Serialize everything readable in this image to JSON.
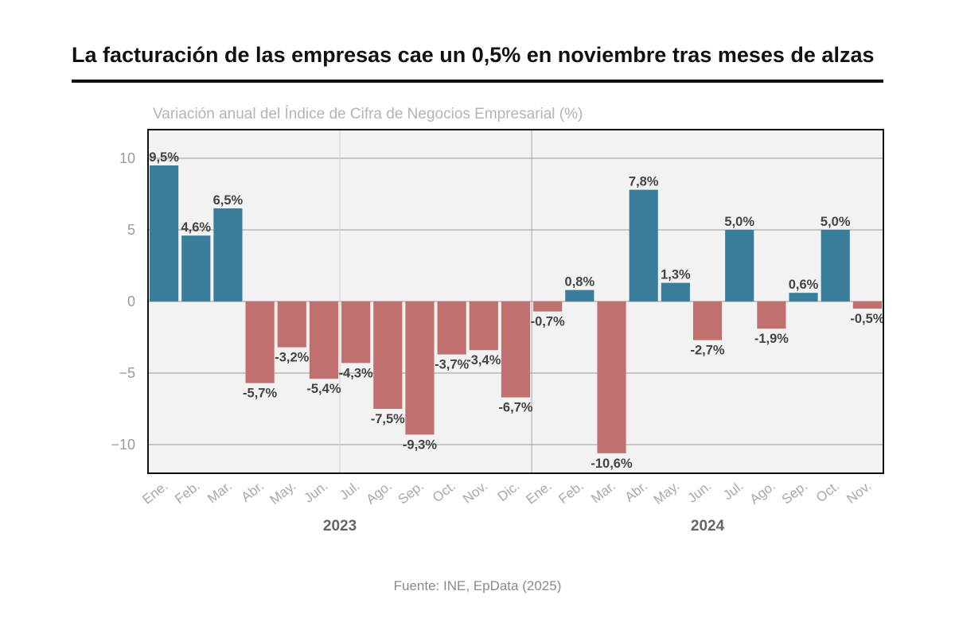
{
  "title": "La facturación de las empresas cae un 0,5% en noviembre tras meses de alzas",
  "source": "Fuente: INE, EpData (2025)",
  "colors": {
    "positive": "#3a7d9b",
    "negative": "#c0706f",
    "plot_bg": "#f2f2f2"
  },
  "chart_data": {
    "type": "bar",
    "title": "Variación anual del Índice de Cifra de Negocios Empresarial (%)",
    "xlabel": "",
    "ylabel": "",
    "ylim": [
      -12,
      12
    ],
    "yticks": [
      10,
      5,
      0,
      -5,
      -10
    ],
    "ytick_labels": [
      "10",
      "5",
      "0",
      "−5",
      "−10"
    ],
    "grid": true,
    "legend": "none",
    "groups": [
      {
        "label": "2023",
        "categories": [
          "Ene.",
          "Feb.",
          "Mar.",
          "Abr.",
          "May.",
          "Jun.",
          "Jul.",
          "Ago.",
          "Sep.",
          "Oct.",
          "Nov.",
          "Dic."
        ]
      },
      {
        "label": "2024",
        "categories": [
          "Ene.",
          "Feb.",
          "Mar.",
          "Abr.",
          "May.",
          "Jun.",
          "Jul.",
          "Ago.",
          "Sep.",
          "Oct.",
          "Nov."
        ]
      }
    ],
    "categories": [
      "Ene.",
      "Feb.",
      "Mar.",
      "Abr.",
      "May.",
      "Jun.",
      "Jul.",
      "Ago.",
      "Sep.",
      "Oct.",
      "Nov.",
      "Dic.",
      "Ene.",
      "Feb.",
      "Mar.",
      "Abr.",
      "May.",
      "Jun.",
      "Jul.",
      "Ago.",
      "Sep.",
      "Oct.",
      "Nov."
    ],
    "values": [
      9.5,
      4.6,
      6.5,
      -5.7,
      -3.2,
      -5.4,
      -4.3,
      -7.5,
      -9.3,
      -3.7,
      -3.4,
      -6.7,
      -0.7,
      0.8,
      -10.6,
      7.8,
      1.3,
      -2.7,
      5.0,
      -1.9,
      0.6,
      5.0,
      -0.5
    ],
    "data_labels": [
      "9,5%",
      "4,6%",
      "6,5%",
      "-5,7%",
      "-3,2%",
      "-5,4%",
      "-4,3%",
      "-7,5%",
      "-9,3%",
      "-3,7%",
      "-3,4%",
      "-6,7%",
      "-0,7%",
      "0,8%",
      "-10,6%",
      "7,8%",
      "1,3%",
      "-2,7%",
      "5,0%",
      "-1,9%",
      "0,6%",
      "5,0%",
      "-0,5%"
    ]
  }
}
